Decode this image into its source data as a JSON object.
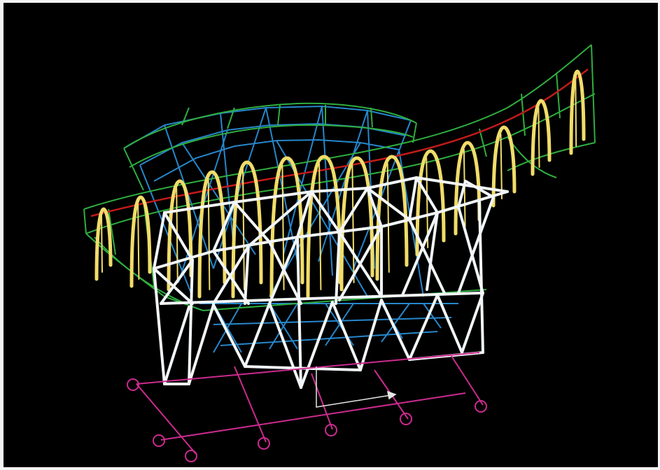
{
  "figure": {
    "description_free": true,
    "colors": {
      "background": "#000000",
      "frame": "#f4f4f4",
      "roof_envelope": "#2fae3f",
      "roof_ribs": "#f0dc6a",
      "ridge_line": "#c21a1a",
      "inner_cables": "#2a8fd6",
      "truss_frame": "#f2f6f8",
      "foundation_grid": "#cc2b8f",
      "axis_marker": "#e6e6e6"
    },
    "icons": {
      "axis_triad": "axis-arrow-icon",
      "grid_bubble": "grid-bubble-icon"
    }
  }
}
